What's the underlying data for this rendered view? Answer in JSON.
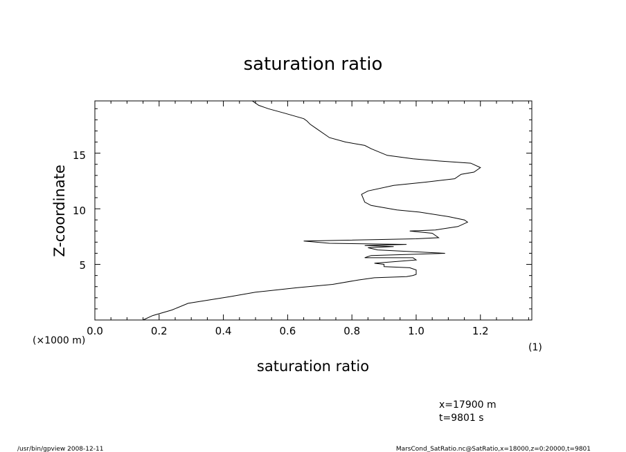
{
  "chart_data": {
    "type": "line",
    "title": "saturation ratio",
    "xlabel": "saturation ratio",
    "xunit": "(1)",
    "ylabel": "Z-coordinate",
    "yunit": "(×1000 m)",
    "xlim": [
      0.0,
      1.36
    ],
    "ylim": [
      0,
      19.7
    ],
    "xticks": [
      "0.0",
      "0.2",
      "0.4",
      "0.6",
      "0.8",
      "1.0",
      "1.2"
    ],
    "yticks": [
      "5",
      "10",
      "15"
    ],
    "grid": false,
    "series": [
      {
        "points": [
          [
            0.15,
            0.0
          ],
          [
            0.18,
            0.4
          ],
          [
            0.24,
            0.9
          ],
          [
            0.29,
            1.5
          ],
          [
            0.42,
            2.1
          ],
          [
            0.5,
            2.5
          ],
          [
            0.63,
            2.9
          ],
          [
            0.74,
            3.2
          ],
          [
            0.82,
            3.6
          ],
          [
            0.87,
            3.8
          ],
          [
            0.97,
            3.9
          ],
          [
            0.99,
            4.0
          ],
          [
            1.0,
            4.1
          ],
          [
            1.0,
            4.5
          ],
          [
            0.98,
            4.7
          ],
          [
            0.9,
            4.8
          ],
          [
            0.9,
            5.0
          ],
          [
            0.87,
            5.1
          ],
          [
            1.0,
            5.4
          ],
          [
            0.99,
            5.6
          ],
          [
            0.84,
            5.6
          ],
          [
            0.86,
            5.8
          ],
          [
            1.09,
            6.0
          ],
          [
            0.88,
            6.3
          ],
          [
            0.85,
            6.5
          ],
          [
            0.93,
            6.6
          ],
          [
            0.84,
            6.7
          ],
          [
            0.97,
            6.8
          ],
          [
            0.73,
            6.9
          ],
          [
            0.65,
            7.1
          ],
          [
            1.0,
            7.3
          ],
          [
            1.07,
            7.4
          ],
          [
            1.05,
            7.8
          ],
          [
            0.98,
            8.0
          ],
          [
            1.06,
            8.1
          ],
          [
            1.13,
            8.4
          ],
          [
            1.16,
            8.8
          ],
          [
            1.15,
            9.0
          ],
          [
            1.1,
            9.3
          ],
          [
            1.01,
            9.7
          ],
          [
            0.94,
            9.9
          ],
          [
            0.86,
            10.3
          ],
          [
            0.84,
            10.6
          ],
          [
            0.83,
            11.3
          ],
          [
            0.85,
            11.6
          ],
          [
            0.93,
            12.1
          ],
          [
            1.03,
            12.4
          ],
          [
            1.12,
            12.7
          ],
          [
            1.14,
            13.1
          ],
          [
            1.18,
            13.3
          ],
          [
            1.2,
            13.7
          ],
          [
            1.17,
            14.1
          ],
          [
            1.07,
            14.3
          ],
          [
            0.99,
            14.5
          ],
          [
            0.91,
            14.8
          ],
          [
            0.86,
            15.4
          ],
          [
            0.84,
            15.7
          ],
          [
            0.78,
            16.0
          ],
          [
            0.73,
            16.4
          ],
          [
            0.72,
            16.6
          ],
          [
            0.69,
            17.2
          ],
          [
            0.67,
            17.6
          ],
          [
            0.66,
            17.9
          ],
          [
            0.65,
            18.1
          ],
          [
            0.59,
            18.6
          ],
          [
            0.54,
            19.0
          ],
          [
            0.51,
            19.3
          ],
          [
            0.5,
            19.5
          ],
          [
            0.49,
            19.7
          ]
        ]
      }
    ]
  },
  "info": {
    "coord_x": "x=17900  m",
    "coord_t": "t=9801  s",
    "footer_left": "/usr/bin/gpview   2008-12-11",
    "footer_right": "MarsCond_SatRatio.nc@SatRatio,x=18000,z=0:20000,t=9801"
  }
}
